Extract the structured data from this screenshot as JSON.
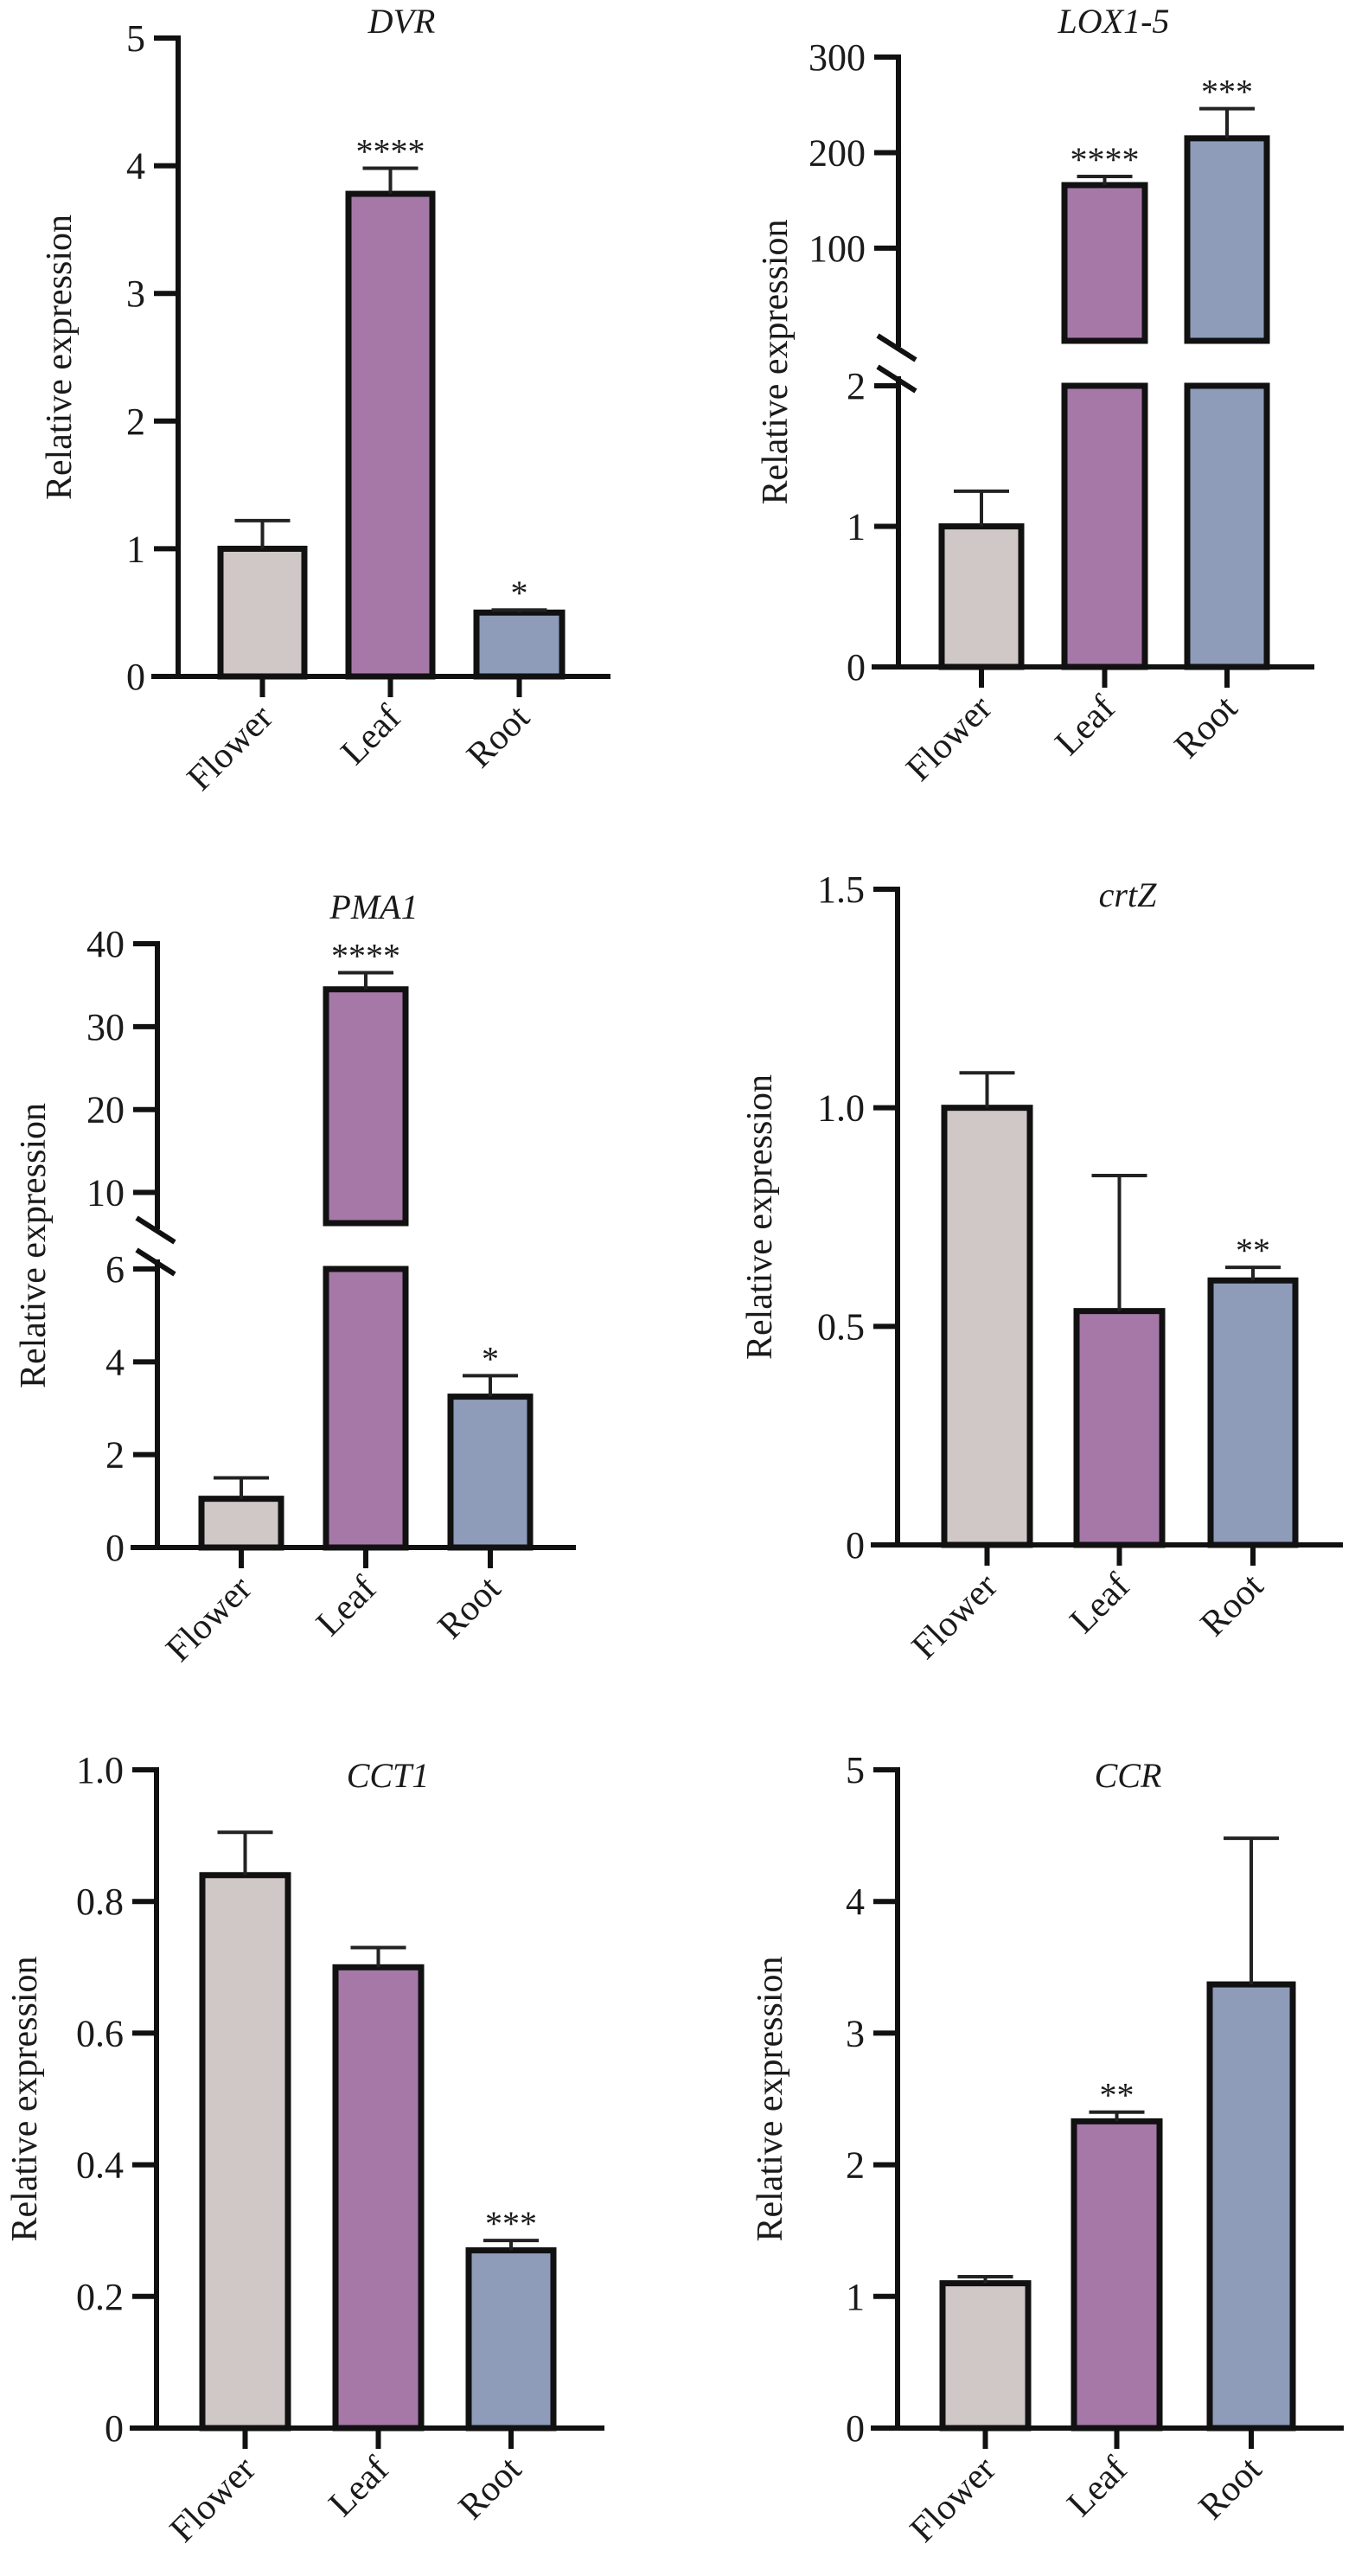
{
  "chart_data": [
    {
      "type": "bar",
      "title": "DVR",
      "xlabel": "",
      "ylabel": "Relative expression",
      "categories": [
        "Flower",
        "Leaf",
        "Root"
      ],
      "values": [
        1.0,
        3.78,
        0.5
      ],
      "error_upper": [
        1.22,
        3.98,
        0.52
      ],
      "significance": [
        "",
        "****",
        "*"
      ],
      "ylim": [
        0,
        5
      ],
      "yticks": [
        0,
        1,
        2,
        3,
        4,
        5
      ],
      "ytick_labels": [
        "0",
        "1",
        "2",
        "3",
        "4",
        "5"
      ],
      "axis_break": null,
      "grid": false
    },
    {
      "type": "bar",
      "title": "LOX1-5",
      "xlabel": "",
      "ylabel": "Relative expression",
      "categories": [
        "Flower",
        "Leaf",
        "Root"
      ],
      "values": [
        1.0,
        166,
        215
      ],
      "error_upper": [
        1.25,
        175,
        246
      ],
      "significance": [
        "",
        "****",
        "***"
      ],
      "ylim": [
        0,
        300
      ],
      "yticks": [
        0,
        1,
        2,
        100,
        200,
        300
      ],
      "ytick_labels": [
        "0",
        "1",
        "2",
        "100",
        "200",
        "300"
      ],
      "axis_break": {
        "lower_max": 2,
        "upper_min": 3,
        "upper_max": 300
      },
      "grid": false
    },
    {
      "type": "bar",
      "title": "PMA1",
      "xlabel": "",
      "ylabel": "Relative expression",
      "categories": [
        "Flower",
        "Leaf",
        "Root"
      ],
      "values": [
        1.05,
        34.5,
        3.25
      ],
      "error_upper": [
        1.5,
        36.5,
        3.7
      ],
      "significance": [
        "",
        "****",
        "*"
      ],
      "ylim": [
        0,
        40
      ],
      "yticks": [
        0,
        2,
        4,
        6,
        10,
        20,
        30,
        40
      ],
      "ytick_labels": [
        "0",
        "2",
        "4",
        "6",
        "10",
        "20",
        "30",
        "40"
      ],
      "axis_break": {
        "lower_max": 6,
        "upper_min": 6.3,
        "upper_max": 40
      },
      "grid": false
    },
    {
      "type": "bar",
      "title": "crtZ",
      "xlabel": "",
      "ylabel": "Relative expression",
      "categories": [
        "Flower",
        "Leaf",
        "Root"
      ],
      "values": [
        1.0,
        0.535,
        0.605
      ],
      "error_upper": [
        1.08,
        0.845,
        0.635
      ],
      "significance": [
        "",
        "",
        "**"
      ],
      "ylim": [
        0,
        1.5
      ],
      "yticks": [
        0,
        0.5,
        1.0,
        1.5
      ],
      "ytick_labels": [
        "0",
        "0.5",
        "1.0",
        "1.5"
      ],
      "axis_break": null,
      "grid": false
    },
    {
      "type": "bar",
      "title": "CCT1",
      "xlabel": "",
      "ylabel": "Relative expression",
      "categories": [
        "Flower",
        "Leaf",
        "Root"
      ],
      "values": [
        0.84,
        0.7,
        0.27
      ],
      "error_upper": [
        0.905,
        0.73,
        0.285
      ],
      "significance": [
        "",
        "",
        "***"
      ],
      "ylim": [
        0,
        1.0
      ],
      "yticks": [
        0,
        0.2,
        0.4,
        0.6,
        0.8,
        1.0
      ],
      "ytick_labels": [
        "0",
        "0.2",
        "0.4",
        "0.6",
        "0.8",
        "1.0"
      ],
      "axis_break": null,
      "grid": false
    },
    {
      "type": "bar",
      "title": "CCR",
      "xlabel": "",
      "ylabel": "Relative expression",
      "categories": [
        "Flower",
        "Leaf",
        "Root"
      ],
      "values": [
        1.1,
        2.33,
        3.37
      ],
      "error_upper": [
        1.15,
        2.4,
        4.48
      ],
      "significance": [
        "",
        "**",
        ""
      ],
      "ylim": [
        0,
        5
      ],
      "yticks": [
        0,
        1,
        2,
        3,
        4,
        5
      ],
      "ytick_labels": [
        "0",
        "1",
        "2",
        "3",
        "4",
        "5"
      ],
      "axis_break": null,
      "grid": false
    }
  ],
  "colors": {
    "Flower": "#D0C8C6",
    "Leaf": "#A678A8",
    "Root": "#8E9CBA"
  }
}
